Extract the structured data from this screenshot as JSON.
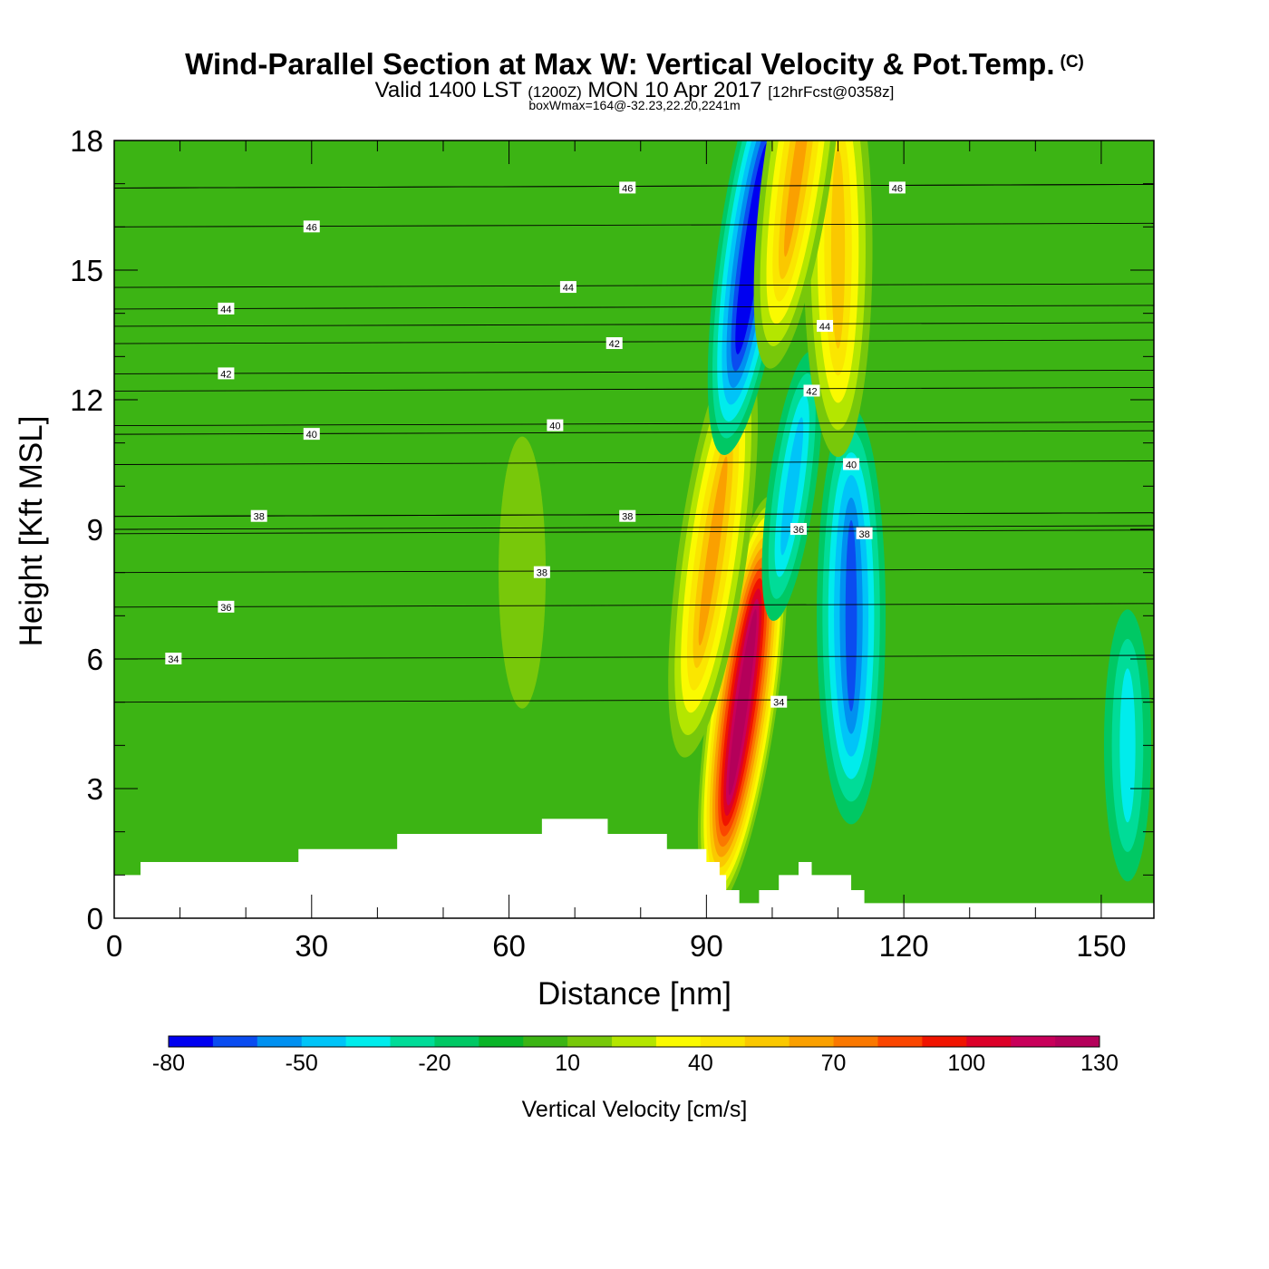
{
  "header": {
    "title": "Wind-Parallel Section at Max W: Vertical Velocity & Pot.Temp.",
    "copyright": "(C)",
    "valid_prefix": "Valid 1400 LST",
    "utc": "(1200Z)",
    "valid_date": "MON 10 Apr 2017",
    "forecast": "[12hrFcst@0358z]",
    "box_info": "boxWmax=164@-32.23,22.20,2241m"
  },
  "chart_data": {
    "type": "heatmap",
    "title": "Wind-Parallel Section at Max W: Vertical Velocity & Pot.Temp.",
    "xlabel": "Distance [nm]",
    "ylabel": "Height [Kft MSL]",
    "xlim": [
      0,
      158
    ],
    "ylim": [
      0,
      18
    ],
    "x_ticks": [
      0,
      30,
      60,
      90,
      120,
      150
    ],
    "x_tick_labels": [
      "0",
      "30",
      "60",
      "90",
      "120",
      "150"
    ],
    "y_ticks": [
      0,
      3,
      6,
      9,
      12,
      15,
      18
    ],
    "y_tick_labels": [
      "0",
      "3",
      "6",
      "9",
      "12",
      "15",
      "18"
    ],
    "grid": false,
    "colorbar": {
      "title": "Vertical Velocity [cm/s]",
      "levels": [
        -80,
        -70,
        -60,
        -50,
        -40,
        -30,
        -20,
        -10,
        0,
        10,
        20,
        30,
        40,
        50,
        60,
        70,
        80,
        90,
        100,
        110,
        120,
        130
      ],
      "tick_labels": [
        "-80",
        "-50",
        "-20",
        "10",
        "40",
        "70",
        "100",
        "130"
      ],
      "colors": [
        "#0000f0",
        "#0a4cf0",
        "#0090f0",
        "#00c4f8",
        "#00ecec",
        "#00dc98",
        "#00c864",
        "#0ab428",
        "#3cb414",
        "#78c80a",
        "#b4e600",
        "#fafa00",
        "#fae600",
        "#fac800",
        "#faa000",
        "#fa7800",
        "#fa4600",
        "#f01400",
        "#dc0028",
        "#c8005a",
        "#b4005a"
      ]
    },
    "background_level": 0,
    "w_features": [
      {
        "kind": "updraft core",
        "x_center": 95.5,
        "z_center": 5,
        "peak_cm_s": 130
      },
      {
        "kind": "updraft",
        "x_center": 91,
        "z_center": 8.5,
        "peak_cm_s": 60
      },
      {
        "kind": "downdraft column",
        "x_center": 97,
        "z_center": 15.5,
        "peak_cm_s": -80
      },
      {
        "kind": "downdraft",
        "x_center": 103,
        "z_center": 10,
        "peak_cm_s": -40
      },
      {
        "kind": "downdraft",
        "x_center": 112,
        "z_center": 7,
        "peak_cm_s": -60
      },
      {
        "kind": "updraft",
        "x_center": 110,
        "z_center": 15.5,
        "peak_cm_s": 50
      },
      {
        "kind": "updraft",
        "x_center": 104,
        "z_center": 17.5,
        "peak_cm_s": 65
      },
      {
        "kind": "downdraft",
        "x_center": 154,
        "z_center": 4,
        "peak_cm_s": -30
      },
      {
        "kind": "updraft",
        "x_center": 62,
        "z_center": 8,
        "peak_cm_s": 15
      }
    ],
    "terrain": {
      "x": [
        0,
        4,
        4,
        28,
        28,
        43,
        43,
        65,
        65,
        75,
        75,
        84,
        84,
        90,
        90,
        92,
        92,
        93,
        93,
        95,
        95,
        98,
        98,
        101,
        101,
        104,
        104,
        106,
        106,
        112,
        112,
        114,
        114,
        158
      ],
      "z": [
        1.0,
        1.0,
        1.3,
        1.3,
        1.6,
        1.6,
        1.95,
        1.95,
        2.3,
        2.3,
        1.95,
        1.95,
        1.6,
        1.6,
        1.3,
        1.3,
        1.0,
        1.0,
        0.65,
        0.65,
        0.35,
        0.35,
        0.65,
        0.65,
        1.0,
        1.0,
        1.3,
        1.3,
        1.0,
        1.0,
        0.65,
        0.65,
        0.35,
        0.35
      ]
    },
    "theta_contours": [
      {
        "label": "34",
        "label_pos": [
          9,
          6.0
        ]
      },
      {
        "label": "36",
        "label_pos": [
          17,
          7.2
        ]
      },
      {
        "label": "38",
        "label_pos": [
          22,
          9.3
        ]
      },
      {
        "label": "40",
        "label_pos": [
          30,
          11.2
        ]
      },
      {
        "label": "42",
        "label_pos": [
          17,
          12.6
        ]
      },
      {
        "label": "44",
        "label_pos": [
          17,
          14.1
        ]
      },
      {
        "label": "46",
        "label_pos": [
          30,
          16.0
        ]
      },
      {
        "label": "38",
        "label_pos": [
          65,
          8.0
        ]
      },
      {
        "label": "40",
        "label_pos": [
          67,
          11.4
        ]
      },
      {
        "label": "42",
        "label_pos": [
          76,
          13.3
        ]
      },
      {
        "label": "44",
        "label_pos": [
          69,
          14.6
        ]
      },
      {
        "label": "46",
        "label_pos": [
          78,
          16.9
        ]
      },
      {
        "label": "38",
        "label_pos": [
          78,
          9.3
        ]
      },
      {
        "label": "36",
        "label_pos": [
          104,
          9.0
        ]
      },
      {
        "label": "38",
        "label_pos": [
          114,
          8.9
        ]
      },
      {
        "label": "40",
        "label_pos": [
          112,
          10.5
        ]
      },
      {
        "label": "42",
        "label_pos": [
          106,
          12.2
        ]
      },
      {
        "label": "44",
        "label_pos": [
          108,
          13.7
        ]
      },
      {
        "label": "46",
        "label_pos": [
          119,
          16.9
        ]
      },
      {
        "label": "34",
        "label_pos": [
          101,
          5.0
        ]
      }
    ]
  }
}
